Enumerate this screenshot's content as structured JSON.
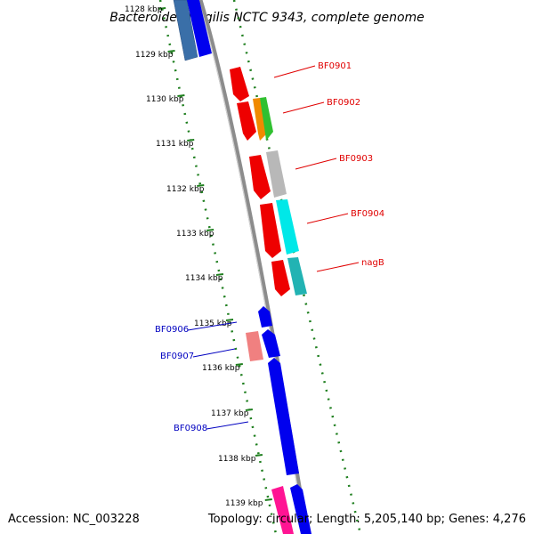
{
  "title": "Bacteroides fragilis NCTC 9343, complete genome",
  "accession": "Accession: NC_003228",
  "topology": "Topology: circular; Length: 5,205,140 bp; Genes: 4,276",
  "colors": {
    "backbone": "#8c8c8c",
    "ruler": "#1f7f1f",
    "forward_label": "#e00000",
    "reverse_label": "#0000c0"
  },
  "ticks": [
    "1128 kbp",
    "1129 kbp",
    "1130 kbp",
    "1131 kbp",
    "1132 kbp",
    "1133 kbp",
    "1134 kbp",
    "1135 kbp",
    "1136 kbp",
    "1137 kbp",
    "1138 kbp",
    "1139 kbp"
  ],
  "gene_labels": {
    "forward": [
      "BF0901",
      "BF0902",
      "BF0903",
      "BF0904",
      "nagB"
    ],
    "reverse": [
      "BF0906",
      "BF0907",
      "BF0908"
    ]
  }
}
